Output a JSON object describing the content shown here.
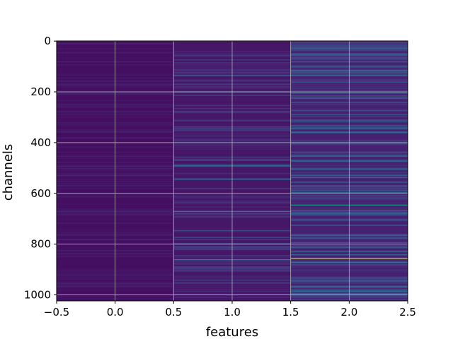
{
  "chart_data": {
    "type": "heatmap",
    "title": "",
    "xlabel": "features",
    "ylabel": "channels",
    "xlim": [
      -0.5,
      2.5
    ],
    "ylim": [
      1023.5,
      -0.5
    ],
    "y_inverted": true,
    "grid": true,
    "colormap": "viridis",
    "n_rows": 1024,
    "x_ticks": [
      -0.5,
      0.0,
      0.5,
      1.0,
      1.5,
      2.0,
      2.5
    ],
    "x_tick_labels": [
      "−0.5",
      "0.0",
      "0.5",
      "1.0",
      "1.5",
      "2.0",
      "2.5"
    ],
    "y_ticks": [
      0,
      200,
      400,
      600,
      800,
      1000
    ],
    "y_tick_labels": [
      "0",
      "200",
      "400",
      "600",
      "800",
      "1000"
    ],
    "columns": [
      {
        "x": 0,
        "base_value": 0.04,
        "highlights": []
      },
      {
        "x": 1,
        "base_value": 0.06,
        "highlights": [
          {
            "row": 135,
            "value": 0.35
          },
          {
            "row": 490,
            "value": 0.38
          },
          {
            "row": 545,
            "value": 0.25
          },
          {
            "row": 670,
            "value": 0.42
          },
          {
            "row": 745,
            "value": 0.22
          },
          {
            "row": 860,
            "value": 0.45
          },
          {
            "row": 905,
            "value": 0.22
          }
        ]
      },
      {
        "x": 2,
        "base_value": 0.09,
        "highlights": [
          {
            "row": 15,
            "value": 0.3
          },
          {
            "row": 115,
            "value": 0.45
          },
          {
            "row": 135,
            "value": 0.35
          },
          {
            "row": 160,
            "value": 0.3
          },
          {
            "row": 215,
            "value": 0.28
          },
          {
            "row": 310,
            "value": 0.32
          },
          {
            "row": 360,
            "value": 0.35
          },
          {
            "row": 450,
            "value": 0.3
          },
          {
            "row": 500,
            "value": 0.28
          },
          {
            "row": 555,
            "value": 0.35
          },
          {
            "row": 570,
            "value": 0.45
          },
          {
            "row": 595,
            "value": 0.33
          },
          {
            "row": 645,
            "value": 0.55
          },
          {
            "row": 665,
            "value": 0.4
          },
          {
            "row": 680,
            "value": 0.35
          },
          {
            "row": 765,
            "value": 0.3
          },
          {
            "row": 855,
            "value": 0.9
          },
          {
            "row": 870,
            "value": 0.4
          },
          {
            "row": 965,
            "value": 0.3
          },
          {
            "row": 985,
            "value": 0.35
          }
        ]
      }
    ]
  }
}
